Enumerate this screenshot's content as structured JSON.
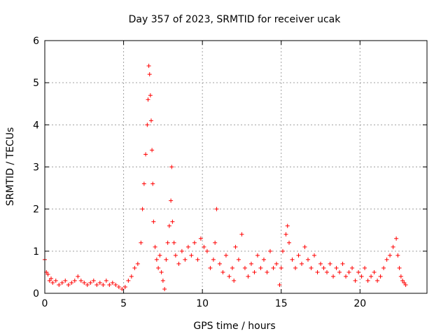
{
  "chart_data": {
    "type": "scatter",
    "title": "Day 357 of 2023, SRMTID for receiver ucak",
    "xlabel": "GPS time / hours",
    "ylabel": "SRMTID / TECUs",
    "xlim": [
      0,
      24.25
    ],
    "ylim": [
      0,
      6
    ],
    "xticks": [
      0,
      5,
      10,
      15,
      20
    ],
    "yticks": [
      0,
      1,
      2,
      3,
      4,
      5,
      6
    ],
    "grid": true,
    "marker": "+",
    "series": [
      {
        "name": "SRMTID",
        "color": "#ff0000",
        "x": [
          0.0,
          0.1,
          0.2,
          0.3,
          0.4,
          0.5,
          0.7,
          0.9,
          1.1,
          1.3,
          1.5,
          1.7,
          1.9,
          2.1,
          2.3,
          2.5,
          2.7,
          2.9,
          3.1,
          3.3,
          3.5,
          3.7,
          3.9,
          4.1,
          4.3,
          4.5,
          4.7,
          4.9,
          5.1,
          5.3,
          5.5,
          5.7,
          5.9,
          6.1,
          6.2,
          6.3,
          6.4,
          6.5,
          6.55,
          6.6,
          6.65,
          6.7,
          6.75,
          6.8,
          6.85,
          6.9,
          7.0,
          7.1,
          7.2,
          7.3,
          7.4,
          7.5,
          7.6,
          7.7,
          7.8,
          7.9,
          8.0,
          8.05,
          8.1,
          8.2,
          8.3,
          8.5,
          8.7,
          8.9,
          9.1,
          9.3,
          9.5,
          9.7,
          9.9,
          10.1,
          10.3,
          10.5,
          10.7,
          10.8,
          10.9,
          11.1,
          11.3,
          11.5,
          11.7,
          11.9,
          12.0,
          12.1,
          12.3,
          12.5,
          12.7,
          12.9,
          13.1,
          13.3,
          13.5,
          13.7,
          13.9,
          14.1,
          14.3,
          14.5,
          14.7,
          14.9,
          15.0,
          15.1,
          15.3,
          15.4,
          15.5,
          15.7,
          15.9,
          16.1,
          16.3,
          16.5,
          16.7,
          16.9,
          17.1,
          17.3,
          17.5,
          17.7,
          17.9,
          18.1,
          18.3,
          18.5,
          18.7,
          18.9,
          19.1,
          19.3,
          19.5,
          19.7,
          19.9,
          20.1,
          20.3,
          20.5,
          20.7,
          20.9,
          21.1,
          21.3,
          21.5,
          21.7,
          21.9,
          22.1,
          22.3,
          22.4,
          22.5,
          22.6,
          22.7,
          22.8,
          22.9
        ],
        "y": [
          0.8,
          0.5,
          0.45,
          0.3,
          0.35,
          0.25,
          0.3,
          0.2,
          0.25,
          0.3,
          0.2,
          0.25,
          0.3,
          0.4,
          0.3,
          0.25,
          0.2,
          0.25,
          0.3,
          0.2,
          0.25,
          0.2,
          0.3,
          0.2,
          0.25,
          0.2,
          0.15,
          0.1,
          0.15,
          0.3,
          0.4,
          0.6,
          0.7,
          1.2,
          2.0,
          2.6,
          3.3,
          4.0,
          4.6,
          5.4,
          5.2,
          4.7,
          4.1,
          3.4,
          2.6,
          1.7,
          1.1,
          0.8,
          0.6,
          0.9,
          0.5,
          0.3,
          0.1,
          0.8,
          1.2,
          1.6,
          2.2,
          3.0,
          1.7,
          1.2,
          0.9,
          0.7,
          1.0,
          0.8,
          1.1,
          0.9,
          1.2,
          0.8,
          1.3,
          1.1,
          1.0,
          0.6,
          0.8,
          1.2,
          2.0,
          0.7,
          0.5,
          0.9,
          0.4,
          0.6,
          0.3,
          1.1,
          0.8,
          1.4,
          0.6,
          0.4,
          0.7,
          0.5,
          0.9,
          0.6,
          0.8,
          0.5,
          1.0,
          0.6,
          0.7,
          0.2,
          0.6,
          1.0,
          1.4,
          1.6,
          1.2,
          0.8,
          0.6,
          0.9,
          0.7,
          1.1,
          0.8,
          0.6,
          0.9,
          0.5,
          0.7,
          0.6,
          0.5,
          0.7,
          0.4,
          0.6,
          0.5,
          0.7,
          0.4,
          0.5,
          0.6,
          0.3,
          0.5,
          0.4,
          0.6,
          0.3,
          0.4,
          0.5,
          0.3,
          0.4,
          0.6,
          0.8,
          0.9,
          1.1,
          1.3,
          0.9,
          0.6,
          0.4,
          0.3,
          0.25,
          0.2
        ]
      }
    ]
  }
}
